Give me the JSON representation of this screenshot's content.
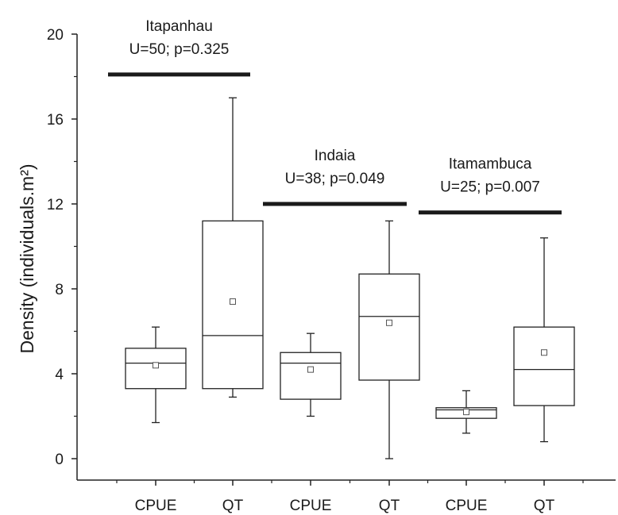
{
  "chart_data": {
    "type": "box",
    "ylabel": "Density (individuals.m²)",
    "ylim": [
      -1,
      20
    ],
    "yticks": [
      0,
      4,
      8,
      12,
      16,
      20
    ],
    "categories": [
      "CPUE",
      "QT",
      "CPUE",
      "QT",
      "CPUE",
      "QT"
    ],
    "boxes": [
      {
        "category": "CPUE",
        "site": "Itapanhau",
        "min": 1.7,
        "q1": 3.3,
        "median": 4.5,
        "q3": 5.2,
        "max": 6.2,
        "mean": 4.4
      },
      {
        "category": "QT",
        "site": "Itapanhau",
        "min": 2.9,
        "q1": 3.3,
        "median": 5.8,
        "q3": 11.2,
        "max": 17.0,
        "mean": 7.4
      },
      {
        "category": "CPUE",
        "site": "Indaia",
        "min": 2.0,
        "q1": 2.8,
        "median": 4.5,
        "q3": 5.0,
        "max": 5.9,
        "mean": 4.2
      },
      {
        "category": "QT",
        "site": "Indaia",
        "min": 0.0,
        "q1": 3.7,
        "median": 6.7,
        "q3": 8.7,
        "max": 11.2,
        "mean": 6.4
      },
      {
        "category": "CPUE",
        "site": "Itamambuca",
        "min": 1.2,
        "q1": 1.9,
        "median": 2.3,
        "q3": 2.4,
        "max": 3.2,
        "mean": 2.2
      },
      {
        "category": "QT",
        "site": "Itamambuca",
        "min": 0.8,
        "q1": 2.5,
        "median": 4.2,
        "q3": 6.2,
        "max": 10.4,
        "mean": 5.0
      }
    ],
    "groups": [
      {
        "name": "Itapanhau",
        "stat": "U=50; p=0.325",
        "bar_y": 18.1,
        "from": 0,
        "to": 1
      },
      {
        "name": "Indaia",
        "stat": "U=38; p=0.049",
        "bar_y": 12.0,
        "from": 2,
        "to": 3
      },
      {
        "name": "Itamambuca",
        "stat": "U=25; p=0.007",
        "bar_y": 11.6,
        "from": 4,
        "to": 5
      }
    ]
  }
}
